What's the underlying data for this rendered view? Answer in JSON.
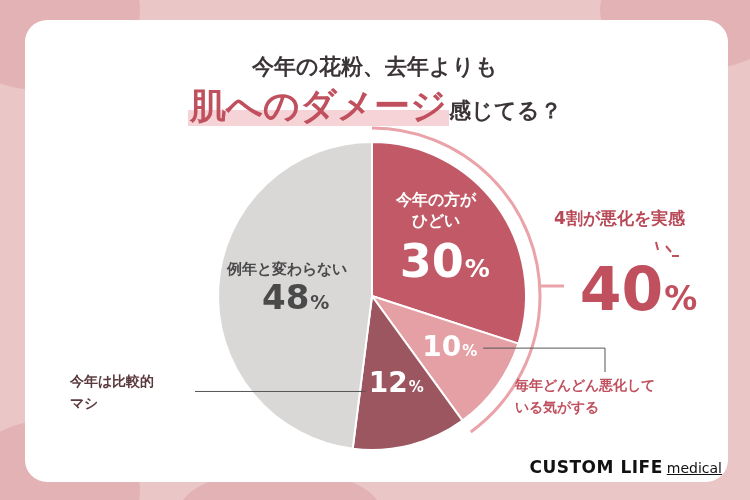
{
  "chart_data": {
    "type": "pie",
    "title": [
      "今年の花粉、去年よりも",
      "肌へのダメージ",
      "感じてる？"
    ],
    "categories": [
      "今年の方がひどい",
      "毎年どんどん悪化している気がする",
      "今年は比較的マシ",
      "例年と変わらない"
    ],
    "values": [
      30,
      10,
      12,
      48
    ],
    "value_labels": [
      "30%",
      "10%",
      "12%",
      "48%"
    ],
    "colors": [
      "#c15a66",
      "#e4a0a4",
      "#9b5660",
      "#dad7d7"
    ],
    "data_labels": true,
    "annotations": [
      {
        "text": "4割が悪化を実感",
        "value": 40,
        "label": "40%"
      }
    ],
    "logo": [
      "CUSTOM LIFE",
      "medical"
    ]
  }
}
